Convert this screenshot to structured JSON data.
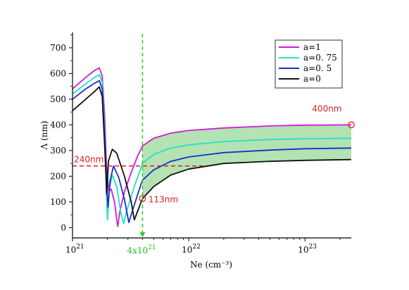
{
  "chart_data": {
    "type": "line",
    "title": "",
    "xlabel": "Ne (cm⁻³)",
    "ylabel": "Λ (nm)",
    "x_scale": "log",
    "xlim": [
      1e+21,
      2.5e+23
    ],
    "ylim": [
      -40,
      760
    ],
    "x_ticks": [
      {
        "value": 1e+21,
        "label": "10",
        "exp": "21"
      },
      {
        "value": 1e+22,
        "label": "10",
        "exp": "22"
      },
      {
        "value": 1e+23,
        "label": "10",
        "exp": "23"
      }
    ],
    "y_ticks": [
      0,
      100,
      200,
      300,
      400,
      500,
      600,
      700
    ],
    "grid": false,
    "legend_position": "top-right",
    "series": [
      {
        "name": "a=1",
        "color": "#d21ad8",
        "points": [
          [
            1e+21,
            540
          ],
          [
            1.3e+21,
            585
          ],
          [
            1.55e+21,
            612
          ],
          [
            1.7e+21,
            622
          ],
          [
            1.8e+21,
            590
          ],
          [
            1.9e+21,
            420
          ],
          [
            1.95e+21,
            260
          ],
          [
            2e+21,
            200
          ],
          [
            2.05e+21,
            140
          ],
          [
            2.15e+21,
            150
          ],
          [
            2.3e+21,
            100
          ],
          [
            2.4e+21,
            30
          ],
          [
            2.45e+21,
            5
          ],
          [
            2.55e+21,
            60
          ],
          [
            2.8e+21,
            140
          ],
          [
            3.2e+21,
            215
          ],
          [
            3.6e+21,
            275
          ],
          [
            4e+21,
            318
          ],
          [
            5e+21,
            348
          ],
          [
            7e+21,
            368
          ],
          [
            1e+22,
            378
          ],
          [
            2e+22,
            388
          ],
          [
            5e+22,
            396
          ],
          [
            1e+23,
            399
          ],
          [
            2.5e+23,
            400
          ]
        ]
      },
      {
        "name": "a=0. 75",
        "color": "#22e0c4",
        "points": [
          [
            1e+21,
            520
          ],
          [
            1.3e+21,
            560
          ],
          [
            1.55e+21,
            585
          ],
          [
            1.7e+21,
            595
          ],
          [
            1.8e+21,
            565
          ],
          [
            1.9e+21,
            360
          ],
          [
            1.95e+21,
            150
          ],
          [
            2e+21,
            30
          ],
          [
            2.08e+21,
            150
          ],
          [
            2.2e+21,
            205
          ],
          [
            2.4e+21,
            160
          ],
          [
            2.6e+21,
            60
          ],
          [
            2.75e+21,
            15
          ],
          [
            2.9e+21,
            60
          ],
          [
            3.4e+21,
            160
          ],
          [
            4e+21,
            250
          ],
          [
            5e+21,
            285
          ],
          [
            7e+21,
            310
          ],
          [
            1e+22,
            322
          ],
          [
            2e+22,
            335
          ],
          [
            5e+22,
            343
          ],
          [
            1e+23,
            346
          ],
          [
            2.5e+23,
            348
          ]
        ]
      },
      {
        "name": "a=0. 5",
        "color": "#1d2fc5",
        "points": [
          [
            1e+21,
            500
          ],
          [
            1.3e+21,
            540
          ],
          [
            1.55e+21,
            562
          ],
          [
            1.7e+21,
            572
          ],
          [
            1.8e+21,
            540
          ],
          [
            1.9e+21,
            330
          ],
          [
            1.96e+21,
            180
          ],
          [
            2.02e+21,
            80
          ],
          [
            2.1e+21,
            180
          ],
          [
            2.25e+21,
            240
          ],
          [
            2.5e+21,
            195
          ],
          [
            2.8e+21,
            110
          ],
          [
            3.05e+21,
            20
          ],
          [
            3.3e+21,
            70
          ],
          [
            3.7e+21,
            140
          ],
          [
            4e+21,
            185
          ],
          [
            5e+21,
            225
          ],
          [
            7e+21,
            258
          ],
          [
            1e+22,
            275
          ],
          [
            2e+22,
            292
          ],
          [
            5e+22,
            302
          ],
          [
            1e+23,
            307
          ],
          [
            2.5e+23,
            310
          ]
        ]
      },
      {
        "name": "a=0",
        "color": "#111111",
        "points": [
          [
            1e+21,
            455
          ],
          [
            1.3e+21,
            500
          ],
          [
            1.55e+21,
            530
          ],
          [
            1.7e+21,
            548
          ],
          [
            1.8e+21,
            510
          ],
          [
            1.9e+21,
            300
          ],
          [
            1.97e+21,
            130
          ],
          [
            2.04e+21,
            260
          ],
          [
            2.2e+21,
            305
          ],
          [
            2.4e+21,
            290
          ],
          [
            2.8e+21,
            200
          ],
          [
            3.2e+21,
            100
          ],
          [
            3.4e+21,
            30
          ],
          [
            3.6e+21,
            60
          ],
          [
            4e+21,
            113
          ],
          [
            5e+21,
            160
          ],
          [
            7e+21,
            205
          ],
          [
            1e+22,
            228
          ],
          [
            2e+22,
            250
          ],
          [
            5e+22,
            258
          ],
          [
            1e+23,
            262
          ],
          [
            2.5e+23,
            265
          ]
        ]
      }
    ],
    "band": {
      "color": "#9ad89a",
      "x_from": 4e+21,
      "x_to": 2.5e+23,
      "upper_series": "a=1",
      "lower_series": "a=0"
    },
    "reference_lines": [
      {
        "orientation": "horizontal",
        "value": 240,
        "color": "#e02020",
        "x_from": 1e+21,
        "x_to": 1.4e+22
      },
      {
        "orientation": "vertical",
        "value": 4e+21,
        "color": "#22d022"
      }
    ],
    "annotations": [
      {
        "text": "240nm",
        "color": "#e02020",
        "x": 1.03e+21,
        "y": 254
      },
      {
        "text": "113nm",
        "color": "#e02020",
        "x": 4.5e+21,
        "y": 98
      },
      {
        "text": "400nm",
        "color": "#e02020",
        "x": 1.15e+23,
        "y": 452
      }
    ],
    "markers": [
      {
        "x": 4e+21,
        "y": 113,
        "color": "#e02020"
      },
      {
        "x": 2.5e+23,
        "y": 400,
        "color": "#e02020"
      }
    ],
    "vline_label": {
      "text": "4x10",
      "exp": "21",
      "color": "#22c022"
    }
  }
}
